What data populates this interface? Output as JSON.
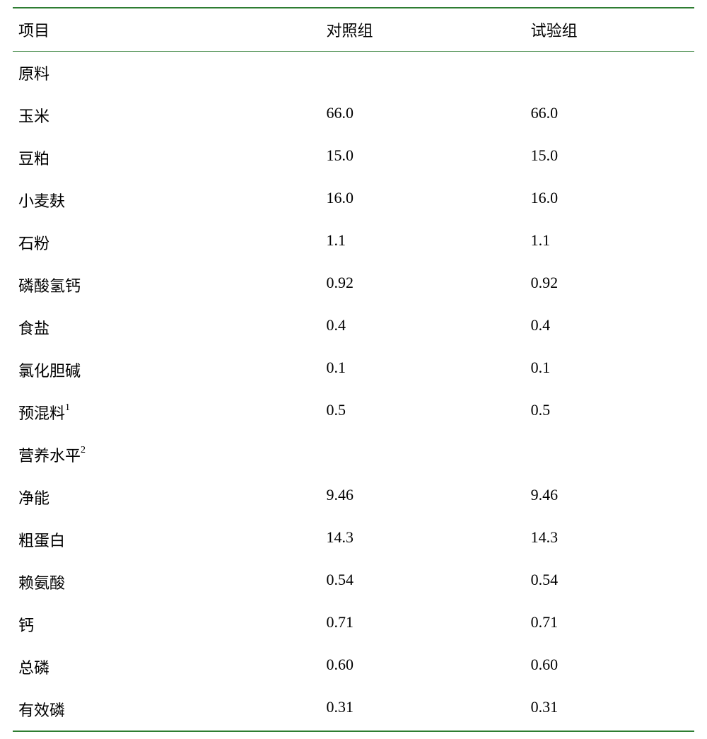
{
  "table": {
    "border_color": "#2e7d32",
    "text_color": "#000000",
    "background_color": "#ffffff",
    "font_size": 22,
    "headers": {
      "item": "项目",
      "control": "对照组",
      "test": "试验组"
    },
    "sections": [
      {
        "title": "原料",
        "sup": "",
        "rows": [
          {
            "item": "玉米",
            "control": "66.0",
            "test": "66.0"
          },
          {
            "item": "豆粕",
            "control": "15.0",
            "test": "15.0"
          },
          {
            "item": "小麦麸",
            "control": "16.0",
            "test": "16.0"
          },
          {
            "item": "石粉",
            "control": "1.1",
            "test": "1.1"
          },
          {
            "item": "磷酸氢钙",
            "control": "0.92",
            "test": "0.92"
          },
          {
            "item": "食盐",
            "control": "0.4",
            "test": "0.4"
          },
          {
            "item": "氯化胆碱",
            "control": "0.1",
            "test": "0.1"
          },
          {
            "item": "预混料",
            "sup": "1",
            "control": "0.5",
            "test": "0.5"
          }
        ]
      },
      {
        "title": "营养水平",
        "sup": "2",
        "rows": [
          {
            "item": "净能",
            "control": "9.46",
            "test": "9.46"
          },
          {
            "item": "粗蛋白",
            "control": "14.3",
            "test": "14.3"
          },
          {
            "item": "赖氨酸",
            "control": "0.54",
            "test": "0.54"
          },
          {
            "item": "钙",
            "control": "0.71",
            "test": "0.71"
          },
          {
            "item": "总磷",
            "control": "0.60",
            "test": "0.60"
          },
          {
            "item": "有效磷",
            "control": "0.31",
            "test": "0.31"
          }
        ]
      }
    ]
  }
}
